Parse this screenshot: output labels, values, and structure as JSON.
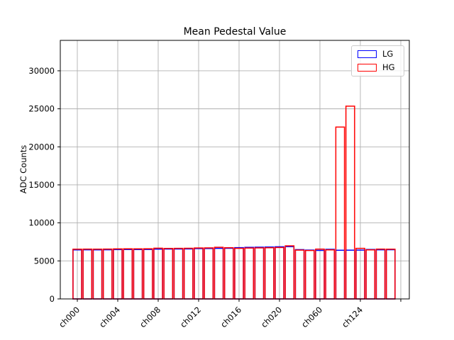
{
  "figure": {
    "title": "Mean Pedestal Value",
    "ylabel": "ADC Counts",
    "background_color": "#ffffff"
  },
  "chart_data": {
    "type": "bar",
    "title": "Mean Pedestal Value",
    "xlabel": "",
    "ylabel": "ADC Counts",
    "bar_style": "outline-only",
    "grid": true,
    "grid_color": "#b0b0b0",
    "spine_color": "#000000",
    "legend_position": "upper right",
    "ylim": [
      0,
      34000
    ],
    "yticks": [
      0,
      5000,
      10000,
      15000,
      20000,
      25000,
      30000
    ],
    "xtick_every": 4,
    "xtick_labels": [
      "ch000",
      "ch004",
      "ch008",
      "ch012",
      "ch016",
      "ch020",
      "ch060",
      "ch124"
    ],
    "extra_unlabeled_tick_at_index": 32,
    "xtick_label_rotation": 45,
    "categories": [
      "ch000",
      "ch001",
      "ch002",
      "ch003",
      "ch004",
      "ch005",
      "ch006",
      "ch007",
      "ch008",
      "ch009",
      "ch010",
      "ch011",
      "ch012",
      "ch013",
      "ch014",
      "ch015",
      "ch016",
      "ch017",
      "ch018",
      "ch019",
      "ch020",
      "ch021",
      "ch022",
      "ch023",
      "ch060",
      "ch061",
      "ch062",
      "ch063",
      "ch124",
      "ch125",
      "ch126",
      "ch127"
    ],
    "series": [
      {
        "name": "LG",
        "color": "#0000ff",
        "values": [
          6450,
          6460,
          6455,
          6465,
          6490,
          6500,
          6495,
          6505,
          6550,
          6560,
          6565,
          6575,
          6620,
          6630,
          6650,
          6660,
          6740,
          6780,
          6800,
          6820,
          6855,
          6880,
          6480,
          6420,
          6380,
          6520,
          6400,
          6410,
          6420,
          6500,
          6460,
          6470
        ]
      },
      {
        "name": "HG",
        "color": "#ff0000",
        "values": [
          6540,
          6550,
          6545,
          6555,
          6580,
          6590,
          6585,
          6595,
          6670,
          6640,
          6650,
          6660,
          6700,
          6710,
          6790,
          6730,
          6650,
          6690,
          6710,
          6730,
          6760,
          6980,
          6420,
          6370,
          6550,
          6450,
          22600,
          25350,
          6650,
          6450,
          6550,
          6540
        ]
      }
    ]
  }
}
